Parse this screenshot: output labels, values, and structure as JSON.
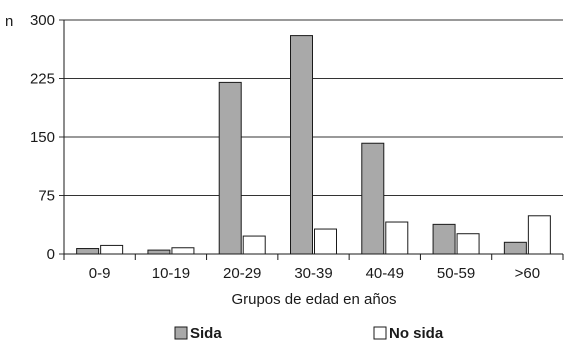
{
  "chart_data": {
    "type": "bar",
    "y_prefix": "n",
    "categories": [
      "0-9",
      "10-19",
      "20-29",
      "30-39",
      "40-49",
      "50-59",
      ">60"
    ],
    "series": [
      {
        "name": "Sida",
        "values": [
          7,
          5,
          220,
          280,
          142,
          38,
          15
        ],
        "color": "#a9a9a9"
      },
      {
        "name": "No sida",
        "values": [
          11,
          8,
          23,
          32,
          41,
          26,
          49
        ],
        "color": "#ffffff"
      }
    ],
    "xlabel": "Grupos de edad en años",
    "ylabel": "",
    "ylim": [
      0,
      300
    ],
    "yticks": [
      0,
      75,
      150,
      225,
      300
    ],
    "grid": true,
    "legend_position": "bottom"
  }
}
